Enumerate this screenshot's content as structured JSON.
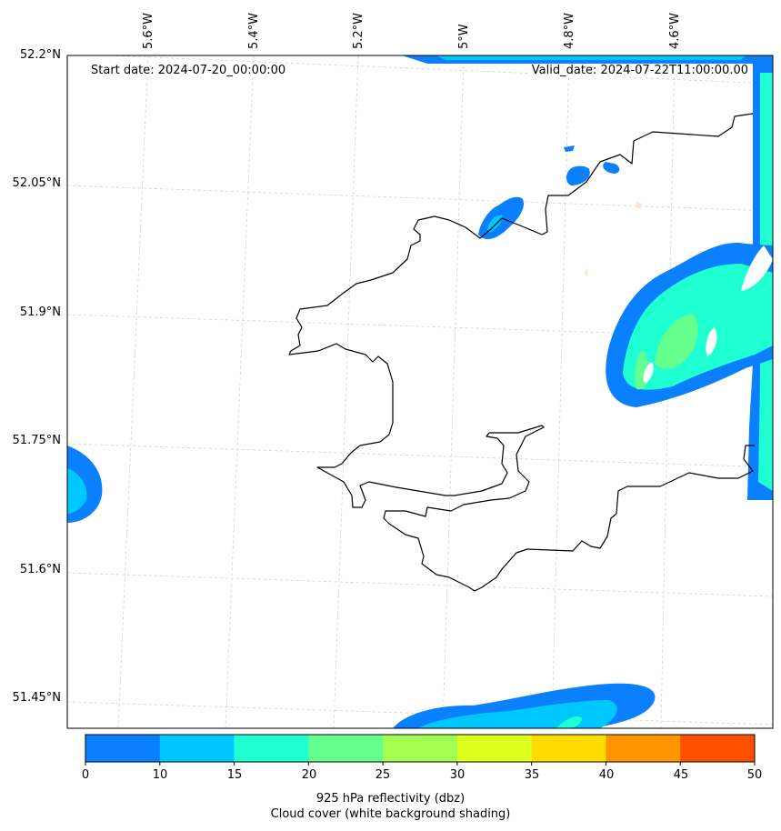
{
  "map": {
    "start_date": "Start date: 2024-07-20_00:00:00",
    "valid_date": "Valid_date: 2024-07-22T11:00:00.00",
    "lat_labels": [
      "52.2°N",
      "52.05°N",
      "51.9°N",
      "51.75°N",
      "51.6°N",
      "51.45°N"
    ],
    "lon_labels": [
      "5.6°W",
      "5.4°W",
      "5.2°W",
      "5°W",
      "4.8°W",
      "4.6°W"
    ]
  },
  "colorbar": {
    "colors": [
      "#0a80ff",
      "#00c8ff",
      "#1effd2",
      "#64ff8c",
      "#a0ff50",
      "#dcff1e",
      "#ffdc00",
      "#ff9600",
      "#ff5000"
    ],
    "ticks": [
      "0",
      "10",
      "15",
      "20",
      "25",
      "30",
      "35",
      "40",
      "45",
      "50"
    ],
    "label_line1": "925 hPa reflectivity (dbz)",
    "label_line2": "Cloud cover (white background shading)"
  }
}
